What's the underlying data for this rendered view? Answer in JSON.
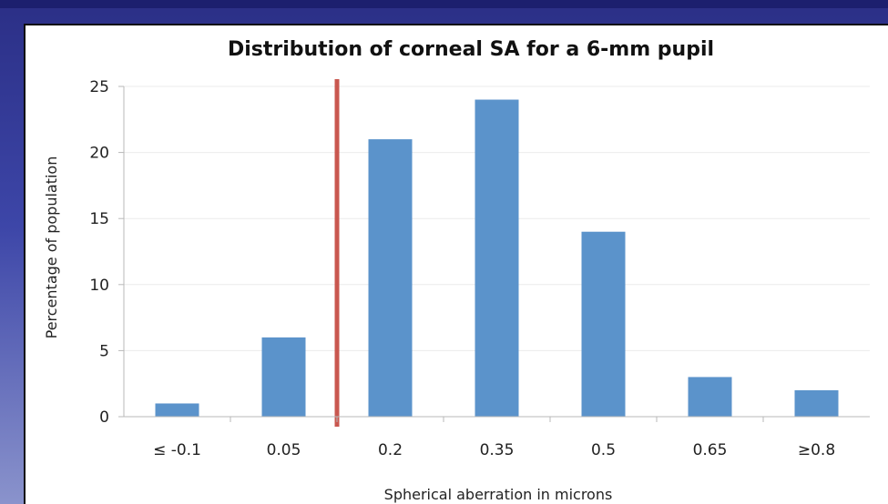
{
  "chart_data": {
    "type": "bar",
    "title": "Distribution of corneal SA for a 6-mm pupil",
    "xlabel": "Spherical aberration in microns",
    "ylabel": "Percentage of population",
    "categories": [
      "≤ -0.1",
      "0.05",
      "0.2",
      "0.35",
      "0.5",
      "0.65",
      "≥0.8"
    ],
    "values": [
      1,
      6,
      21,
      24,
      14,
      3,
      2
    ],
    "ylim": [
      0,
      25
    ],
    "yticks": [
      "0",
      "5",
      "10",
      "15",
      "20",
      "25"
    ],
    "ytick_values": [
      0,
      5,
      10,
      15,
      20,
      25
    ],
    "grid": true,
    "legend": "none",
    "reference_line_between": [
      1,
      2
    ],
    "colors": {
      "bar": "#5b93cb",
      "reference_line": "#c9574f",
      "grid": "#ebebeb",
      "axis": "#b8b8b8"
    }
  }
}
